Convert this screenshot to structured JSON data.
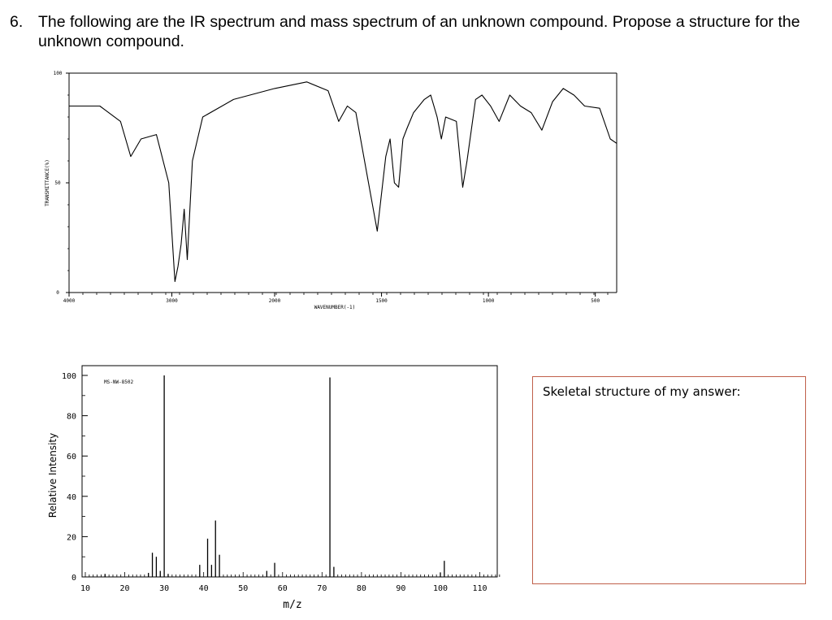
{
  "question": {
    "number": "6.",
    "text": "The following are the IR spectrum and mass spectrum of an unknown compound. Propose a structure for the unknown compound."
  },
  "answer_box": {
    "title": "Skeletal structure of my answer:"
  },
  "colors": {
    "answer_border": "#c0604a",
    "plot": "#000000"
  },
  "chart_data": [
    {
      "type": "line",
      "xlabel": "WAVENUMBER(-1)",
      "ylabel": "TRANSMITTANCE(%)",
      "xlim": [
        4000,
        400
      ],
      "ylim": [
        0,
        100
      ],
      "x_ticks": [
        "4000",
        "3000",
        "2000",
        "1500",
        "1000",
        "500"
      ],
      "y_ticks": [
        "100",
        "50",
        "0"
      ],
      "points": [
        [
          4000,
          85
        ],
        [
          3700,
          85
        ],
        [
          3500,
          78
        ],
        [
          3400,
          62
        ],
        [
          3300,
          70
        ],
        [
          3150,
          72
        ],
        [
          3030,
          50
        ],
        [
          2970,
          5
        ],
        [
          2940,
          12
        ],
        [
          2910,
          22
        ],
        [
          2880,
          38
        ],
        [
          2850,
          15
        ],
        [
          2800,
          60
        ],
        [
          2700,
          80
        ],
        [
          2400,
          88
        ],
        [
          2000,
          93
        ],
        [
          1850,
          96
        ],
        [
          1750,
          92
        ],
        [
          1700,
          78
        ],
        [
          1660,
          85
        ],
        [
          1620,
          82
        ],
        [
          1570,
          55
        ],
        [
          1520,
          28
        ],
        [
          1480,
          62
        ],
        [
          1460,
          70
        ],
        [
          1440,
          50
        ],
        [
          1420,
          48
        ],
        [
          1400,
          70
        ],
        [
          1380,
          75
        ],
        [
          1350,
          82
        ],
        [
          1300,
          88
        ],
        [
          1270,
          90
        ],
        [
          1240,
          80
        ],
        [
          1220,
          70
        ],
        [
          1200,
          80
        ],
        [
          1150,
          78
        ],
        [
          1120,
          48
        ],
        [
          1100,
          60
        ],
        [
          1060,
          88
        ],
        [
          1030,
          90
        ],
        [
          990,
          85
        ],
        [
          950,
          78
        ],
        [
          900,
          90
        ],
        [
          850,
          85
        ],
        [
          800,
          82
        ],
        [
          750,
          74
        ],
        [
          700,
          87
        ],
        [
          650,
          93
        ],
        [
          600,
          90
        ],
        [
          550,
          85
        ],
        [
          480,
          84
        ],
        [
          430,
          70
        ],
        [
          400,
          68
        ]
      ]
    },
    {
      "type": "bar",
      "id": "MS-NW-8502",
      "xlabel": "m/z",
      "ylabel": "Relative Intensity",
      "xlim": [
        10,
        115
      ],
      "ylim": [
        0,
        100
      ],
      "x_ticks": [
        10,
        20,
        30,
        40,
        50,
        60,
        70,
        80,
        90,
        100,
        110
      ],
      "y_ticks": [
        0,
        20,
        40,
        60,
        80,
        100
      ],
      "peaks": [
        {
          "mz": 15,
          "intensity": 1.5
        },
        {
          "mz": 26,
          "intensity": 2
        },
        {
          "mz": 27,
          "intensity": 12
        },
        {
          "mz": 28,
          "intensity": 10
        },
        {
          "mz": 29,
          "intensity": 3
        },
        {
          "mz": 30,
          "intensity": 100
        },
        {
          "mz": 31,
          "intensity": 1.5
        },
        {
          "mz": 39,
          "intensity": 6
        },
        {
          "mz": 41,
          "intensity": 19
        },
        {
          "mz": 42,
          "intensity": 6
        },
        {
          "mz": 43,
          "intensity": 28
        },
        {
          "mz": 44,
          "intensity": 11
        },
        {
          "mz": 56,
          "intensity": 3
        },
        {
          "mz": 58,
          "intensity": 7
        },
        {
          "mz": 72,
          "intensity": 99
        },
        {
          "mz": 73,
          "intensity": 5
        },
        {
          "mz": 100,
          "intensity": 2
        },
        {
          "mz": 101,
          "intensity": 8
        }
      ]
    }
  ]
}
